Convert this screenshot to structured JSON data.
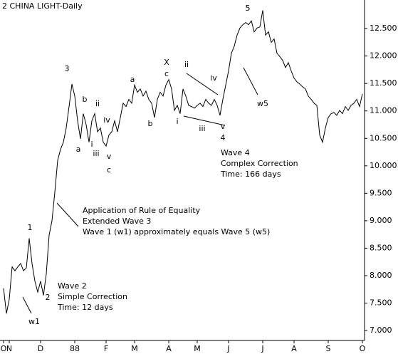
{
  "chart_data": {
    "type": "line",
    "title": "2 CHINA LIGHT-Daily",
    "categories": [
      "O",
      null,
      "N",
      null,
      null,
      null,
      null,
      null,
      null,
      null,
      null,
      null,
      null,
      "D",
      null,
      null,
      null,
      null,
      null,
      null,
      null,
      null,
      null,
      null,
      null,
      "88",
      null,
      null,
      null,
      null,
      null,
      null,
      null,
      null,
      null,
      null,
      "F",
      null,
      null,
      null,
      null,
      null,
      null,
      null,
      null,
      null,
      "M",
      null,
      null,
      null,
      null,
      null,
      null,
      null,
      null,
      null,
      null,
      null,
      "A",
      null,
      null,
      null,
      null,
      null,
      null,
      null,
      null,
      null,
      "M",
      null,
      null,
      null,
      null,
      null,
      null,
      null,
      null,
      null,
      null,
      "J",
      null,
      null,
      null,
      null,
      null,
      null,
      null,
      null,
      null,
      null,
      null,
      "J",
      null,
      null,
      null,
      null,
      null,
      null,
      null,
      null,
      null,
      null,
      "A",
      null,
      null,
      null,
      null,
      null,
      null,
      null,
      null,
      null,
      null,
      null,
      "S",
      null,
      null,
      null,
      null,
      null,
      null,
      null,
      null,
      null,
      null,
      null,
      "O"
    ],
    "series": [
      {
        "color": "#000000",
        "values": [
          7.77,
          7.31,
          7.57,
          8.16,
          8.09,
          8.16,
          8.22,
          8.09,
          8.14,
          8.68,
          8.22,
          7.9,
          7.7,
          7.9,
          7.64,
          8.03,
          8.74,
          9.0,
          9.52,
          10.1,
          10.3,
          10.43,
          10.69,
          11.08,
          11.49,
          11.27,
          10.82,
          10.49,
          10.95,
          10.75,
          10.43,
          10.82,
          10.95,
          10.62,
          10.69,
          10.43,
          10.36,
          10.56,
          10.62,
          10.82,
          10.62,
          10.88,
          11.14,
          11.08,
          11.21,
          11.14,
          11.47,
          11.34,
          11.4,
          11.27,
          11.36,
          11.21,
          11.14,
          10.88,
          11.21,
          11.34,
          11.27,
          11.47,
          11.57,
          11.4,
          11.01,
          11.1,
          10.95,
          11.4,
          11.27,
          11.1,
          11.08,
          11.05,
          11.1,
          11.14,
          11.08,
          11.21,
          11.14,
          11.1,
          11.21,
          11.1,
          10.92,
          11.21,
          11.47,
          11.73,
          12.05,
          12.18,
          12.38,
          12.51,
          12.57,
          12.61,
          12.57,
          12.64,
          12.44,
          12.51,
          12.53,
          12.83,
          12.38,
          12.44,
          12.25,
          12.31,
          12.05,
          11.99,
          11.92,
          11.79,
          11.88,
          11.73,
          11.6,
          11.53,
          11.49,
          11.44,
          11.4,
          11.27,
          11.21,
          11.14,
          11.1,
          10.56,
          10.43,
          10.69,
          10.88,
          10.95,
          10.97,
          10.92,
          11.01,
          10.95,
          11.08,
          11.01,
          11.1,
          11.14,
          11.21,
          11.08,
          11.31
        ]
      }
    ],
    "ylim": [
      6.69,
      13.02
    ],
    "yticks": [
      {
        "value": 7,
        "label": "7.000"
      },
      {
        "value": 7.5,
        "label": "7.500"
      },
      {
        "value": 8,
        "label": "8.000"
      },
      {
        "value": 8.5,
        "label": "8.500"
      },
      {
        "value": 9,
        "label": "9.000"
      },
      {
        "value": 9.5,
        "label": "9.500"
      },
      {
        "value": 10,
        "label": "10.000"
      },
      {
        "value": 10.5,
        "label": "10.500"
      },
      {
        "value": 11,
        "label": "11.000"
      },
      {
        "value": 11.5,
        "label": "11.500"
      },
      {
        "value": 12,
        "label": "12.000"
      },
      {
        "value": 12.5,
        "label": "12.500"
      }
    ],
    "annotations": [
      "5",
      "3",
      "1",
      "2",
      "4",
      "a",
      "b",
      "ii",
      "iv",
      "i",
      "iii",
      "v",
      "c",
      "a",
      "b",
      "X",
      "c",
      "ii",
      "iv",
      "i",
      "iii",
      "v",
      "w5",
      "w1",
      "Wave 4",
      "Complex Correction",
      "Time: 166 days",
      "Application of Rule of Equality",
      "Extended Wave 3",
      "Wave 1 (w1) approximately equals Wave 5 (w5)",
      "Wave 2",
      "Simple Correction",
      "Time: 12 days"
    ]
  }
}
